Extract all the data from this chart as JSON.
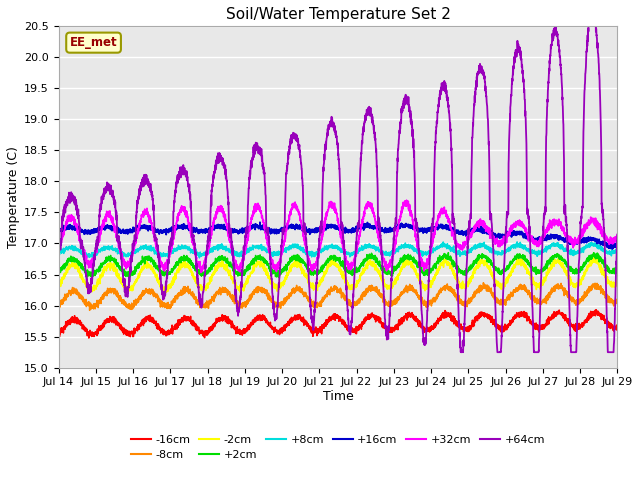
{
  "title": "Soil/Water Temperature Set 2",
  "xlabel": "Time",
  "ylabel": "Temperature (C)",
  "ylim": [
    15.0,
    20.5
  ],
  "annotation": "EE_met",
  "series": [
    {
      "label": "-16cm",
      "color": "#ff0000"
    },
    {
      "label": "-8cm",
      "color": "#ff8800"
    },
    {
      "label": "-2cm",
      "color": "#ffff00"
    },
    {
      "label": "+2cm",
      "color": "#00dd00"
    },
    {
      "label": "+8cm",
      "color": "#00dddd"
    },
    {
      "label": "+16cm",
      "color": "#0000cc"
    },
    {
      "label": "+32cm",
      "color": "#ff00ff"
    },
    {
      "label": "+64cm",
      "color": "#9900bb"
    }
  ],
  "xtick_labels": [
    "Jul 14",
    "Jul 15",
    "Jul 16",
    "Jul 17",
    "Jul 18",
    "Jul 19",
    "Jul 20",
    "Jul 21",
    "Jul 22",
    "Jul 23",
    "Jul 24",
    "Jul 25",
    "Jul 26",
    "Jul 27",
    "Jul 28",
    "Jul 29"
  ],
  "yticks": [
    15.0,
    15.5,
    16.0,
    16.5,
    17.0,
    17.5,
    18.0,
    18.5,
    19.0,
    19.5,
    20.0,
    20.5
  ],
  "bg_color": "#ffffff",
  "plot_bg_color": "#e8e8e8",
  "grid_color": "#ffffff",
  "title_fontsize": 11,
  "axis_fontsize": 9,
  "tick_fontsize": 8,
  "legend_fontsize": 8
}
